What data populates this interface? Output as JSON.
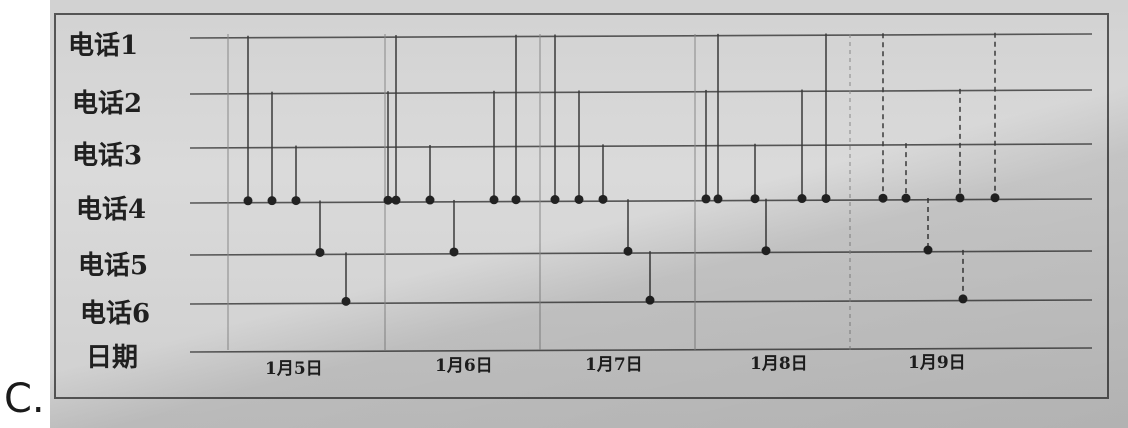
{
  "option_label": "C.",
  "rows": [
    "电话1",
    "电话2",
    "电话3",
    "电话4",
    "电话5",
    "电话6"
  ],
  "date_row_label": "日期",
  "dates": [
    "1月5日",
    "1月6日",
    "1月7日",
    "1月8日",
    "1月9日"
  ],
  "calls": [
    {
      "from": 1,
      "to": 4,
      "style": "solid"
    },
    {
      "from": 2,
      "to": 4,
      "style": "solid"
    },
    {
      "from": 3,
      "to": 4,
      "style": "solid"
    },
    {
      "from": 4,
      "to": 5,
      "style": "solid"
    },
    {
      "from": 5,
      "to": 6,
      "style": "solid"
    },
    {
      "from": 2,
      "to": 4,
      "style": "solid"
    },
    {
      "from": 1,
      "to": 4,
      "style": "solid"
    },
    {
      "from": 3,
      "to": 4,
      "style": "solid"
    },
    {
      "from": 4,
      "to": 5,
      "style": "solid"
    },
    {
      "from": 2,
      "to": 4,
      "style": "solid"
    },
    {
      "from": 1,
      "to": 4,
      "style": "solid"
    },
    {
      "from": 1,
      "to": 4,
      "style": "solid"
    },
    {
      "from": 2,
      "to": 4,
      "style": "solid"
    },
    {
      "from": 3,
      "to": 4,
      "style": "solid"
    },
    {
      "from": 4,
      "to": 5,
      "style": "solid"
    },
    {
      "from": 5,
      "to": 6,
      "style": "solid"
    },
    {
      "from": 2,
      "to": 4,
      "style": "solid"
    },
    {
      "from": 1,
      "to": 4,
      "style": "solid"
    },
    {
      "from": 3,
      "to": 4,
      "style": "solid"
    },
    {
      "from": 4,
      "to": 5,
      "style": "solid"
    },
    {
      "from": 2,
      "to": 4,
      "style": "solid"
    },
    {
      "from": 1,
      "to": 4,
      "style": "solid"
    },
    {
      "from": 1,
      "to": 4,
      "style": "dashed"
    },
    {
      "from": 3,
      "to": 4,
      "style": "dashed"
    },
    {
      "from": 4,
      "to": 5,
      "style": "dashed"
    },
    {
      "from": 2,
      "to": 4,
      "style": "dashed"
    },
    {
      "from": 5,
      "to": 6,
      "style": "dashed"
    },
    {
      "from": 1,
      "to": 4,
      "style": "dashed"
    }
  ],
  "colors": {
    "line": "#3a3a3a",
    "paper": "#d6d6d6"
  }
}
